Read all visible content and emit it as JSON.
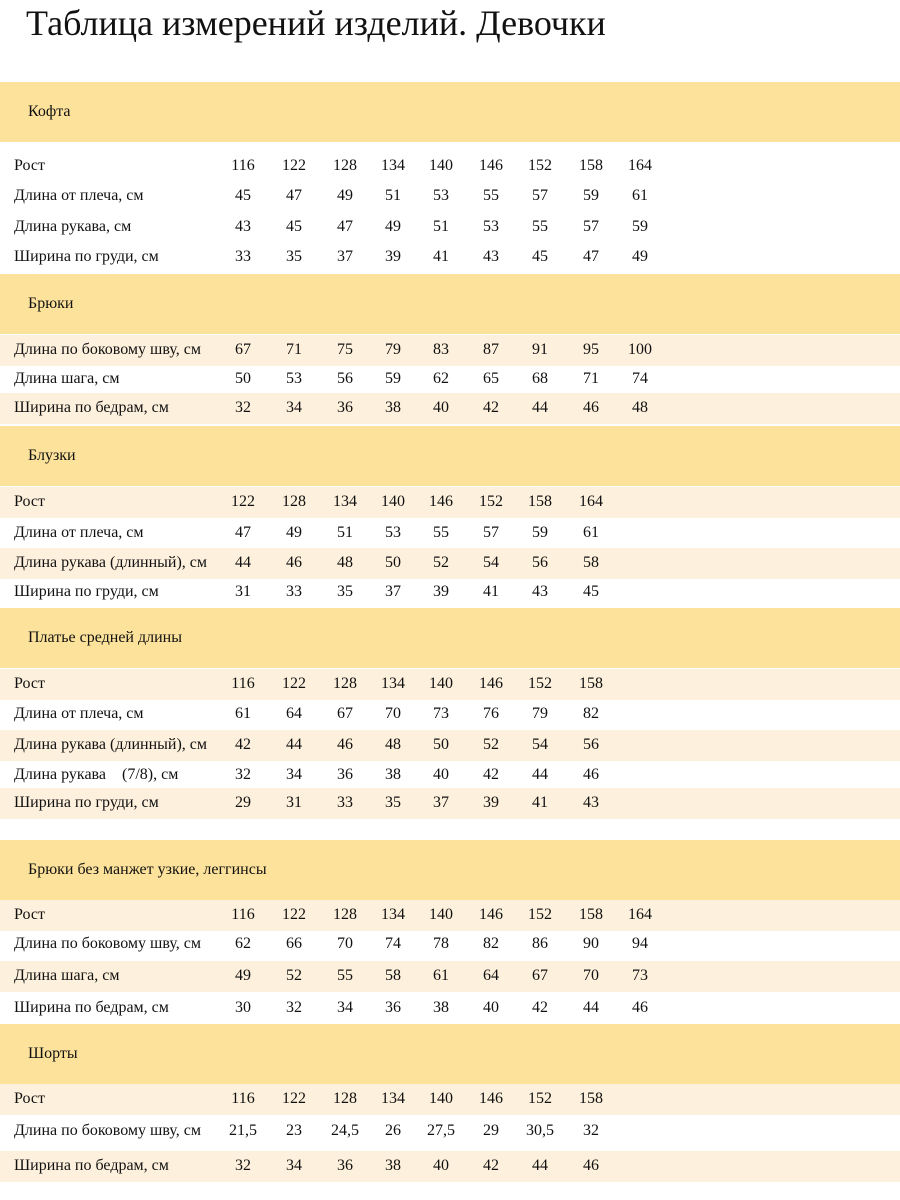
{
  "title": "Таблица измерений изделий. Девочки",
  "sections": [
    {
      "title": "Кофта",
      "rows": [
        {
          "label": "Рост",
          "cells": [
            "116",
            "122",
            "128",
            "134",
            "140",
            "146",
            "152",
            "158",
            "164"
          ]
        },
        {
          "label": "Длина от плеча, см",
          "cells": [
            "45",
            "47",
            "49",
            "51",
            "53",
            "55",
            "57",
            "59",
            "61"
          ]
        },
        {
          "label": "Длина рукава, см",
          "cells": [
            "43",
            "45",
            "47",
            "49",
            "51",
            "53",
            "55",
            "57",
            "59"
          ]
        },
        {
          "label": "Ширина по груди, см",
          "cells": [
            "33",
            "35",
            "37",
            "39",
            "41",
            "43",
            "45",
            "47",
            "49"
          ]
        }
      ]
    },
    {
      "title": "Брюки",
      "rows": [
        {
          "label": "Длина по боковому шву, см",
          "cells": [
            "67",
            "71",
            "75",
            "79",
            "83",
            "87",
            "91",
            "95",
            "100"
          ]
        },
        {
          "label": "Длина шага, см",
          "cells": [
            "50",
            "53",
            "56",
            "59",
            "62",
            "65",
            "68",
            "71",
            "74"
          ]
        },
        {
          "label": "Ширина по бедрам, см",
          "cells": [
            "32",
            "34",
            "36",
            "38",
            "40",
            "42",
            "44",
            "46",
            "48"
          ]
        }
      ]
    },
    {
      "title": "Блузки",
      "rows": [
        {
          "label": "Рост",
          "cells": [
            "122",
            "128",
            "134",
            "140",
            "146",
            "152",
            "158",
            "164"
          ]
        },
        {
          "label": "Длина от плеча, см",
          "cells": [
            "47",
            "49",
            "51",
            "53",
            "55",
            "57",
            "59",
            "61"
          ]
        },
        {
          "label": "Длина рукава (длинный), см",
          "cells": [
            "44",
            "46",
            "48",
            "50",
            "52",
            "54",
            "56",
            "58"
          ]
        },
        {
          "label": "Ширина по груди, см",
          "cells": [
            "31",
            "33",
            "35",
            "37",
            "39",
            "41",
            "43",
            "45"
          ]
        }
      ]
    },
    {
      "title": "Платье средней длины",
      "rows": [
        {
          "label": "Рост",
          "cells": [
            "116",
            "122",
            "128",
            "134",
            "140",
            "146",
            "152",
            "158"
          ]
        },
        {
          "label": "Длина от плеча, см",
          "cells": [
            "61",
            "64",
            "67",
            "70",
            "73",
            "76",
            "79",
            "82"
          ]
        },
        {
          "label": "Длина рукава (длинный), см",
          "cells": [
            "42",
            "44",
            "46",
            "48",
            "50",
            "52",
            "54",
            "56"
          ]
        },
        {
          "label": "Длина рукава    (7/8), см",
          "cells": [
            "32",
            "34",
            "36",
            "38",
            "40",
            "42",
            "44",
            "46"
          ]
        },
        {
          "label": "Ширина по груди, см",
          "cells": [
            "29",
            "31",
            "33",
            "35",
            "37",
            "39",
            "41",
            "43"
          ]
        }
      ]
    },
    {
      "title": "Брюки без манжет узкие, леггинсы",
      "rows": [
        {
          "label": "Рост",
          "cells": [
            "116",
            "122",
            "128",
            "134",
            "140",
            "146",
            "152",
            "158",
            "164"
          ]
        },
        {
          "label": "Длина по боковому шву, см",
          "cells": [
            "62",
            "66",
            "70",
            "74",
            "78",
            "82",
            "86",
            "90",
            "94"
          ]
        },
        {
          "label": "Длина шага, см",
          "cells": [
            "49",
            "52",
            "55",
            "58",
            "61",
            "64",
            "67",
            "70",
            "73"
          ]
        },
        {
          "label": "Ширина по бедрам, см",
          "cells": [
            "30",
            "32",
            "34",
            "36",
            "38",
            "40",
            "42",
            "44",
            "46"
          ]
        }
      ]
    },
    {
      "title": "Шорты",
      "rows": [
        {
          "label": "Рост",
          "cells": [
            "116",
            "122",
            "128",
            "134",
            "140",
            "146",
            "152",
            "158"
          ]
        },
        {
          "label": "Длина по боковому шву, см",
          "cells": [
            "21,5",
            "23",
            "24,5",
            "26",
            "27,5",
            "29",
            "30,5",
            "32"
          ]
        },
        {
          "label": "Ширина по бедрам, см",
          "cells": [
            "32",
            "34",
            "36",
            "38",
            "40",
            "42",
            "44",
            "46"
          ]
        }
      ]
    }
  ]
}
